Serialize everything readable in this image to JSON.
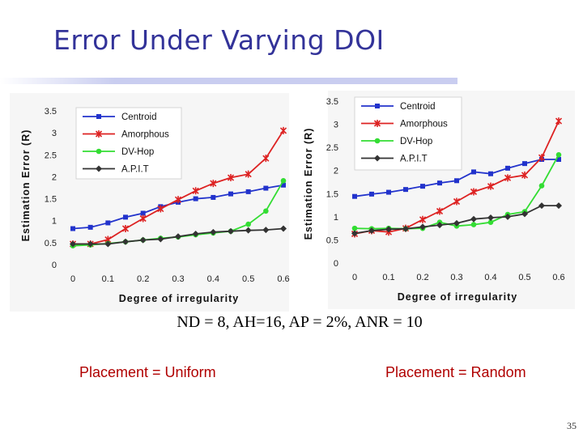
{
  "slide": {
    "title": "Error Under Varying DOI",
    "params": "ND = 8, AH=16, AP = 2%, ANR = 10",
    "caption_left": "Placement = Uniform",
    "caption_right": "Placement = Random",
    "page_number": "35"
  },
  "series_style": [
    {
      "color": "#2233cc",
      "marker": "square"
    },
    {
      "color": "#dd2222",
      "marker": "star"
    },
    {
      "color": "#33dd33",
      "marker": "circle"
    },
    {
      "color": "#333333",
      "marker": "diamond"
    }
  ],
  "chart_data": [
    {
      "type": "line",
      "xlabel": "Degree of irregularity",
      "ylabel": "Estimation Error (R)",
      "xticks": [
        "0",
        "0.1",
        "0.2",
        "0.3",
        "0.4",
        "0.5",
        "0.6"
      ],
      "yticks": [
        "0",
        "0.5",
        "1",
        "1.5",
        "2",
        "2.5",
        "3",
        "3.5"
      ],
      "xlim": [
        0,
        0.6
      ],
      "ylim": [
        0,
        3.5
      ],
      "grid": false,
      "legend": "top-left",
      "x": [
        0,
        0.05,
        0.1,
        0.15,
        0.2,
        0.25,
        0.3,
        0.35,
        0.4,
        0.45,
        0.5,
        0.55,
        0.6
      ],
      "series": [
        {
          "name": "Centroid",
          "values": [
            0.82,
            0.85,
            0.95,
            1.08,
            1.17,
            1.32,
            1.42,
            1.5,
            1.53,
            1.61,
            1.66,
            1.74,
            1.81
          ]
        },
        {
          "name": "Amorphous",
          "values": [
            0.47,
            0.47,
            0.57,
            0.82,
            1.05,
            1.27,
            1.48,
            1.68,
            1.85,
            1.98,
            2.06,
            2.42,
            3.05
          ]
        },
        {
          "name": "DV-Hop",
          "values": [
            0.43,
            0.45,
            0.48,
            0.52,
            0.56,
            0.6,
            0.63,
            0.68,
            0.72,
            0.76,
            0.92,
            1.22,
            1.91
          ]
        },
        {
          "name": "A.P.I.T",
          "values": [
            0.47,
            0.47,
            0.47,
            0.52,
            0.56,
            0.58,
            0.64,
            0.7,
            0.74,
            0.76,
            0.78,
            0.79,
            0.82
          ]
        }
      ]
    },
    {
      "type": "line",
      "xlabel": "Degree of irregularity",
      "ylabel": "Estimation Error (R)",
      "xticks": [
        "0",
        "0.1",
        "0.2",
        "0.3",
        "0.4",
        "0.5",
        "0.6"
      ],
      "yticks": [
        "0",
        "0.5",
        "1",
        "1.5",
        "2",
        "2.5",
        "3",
        "3.5"
      ],
      "xlim": [
        0,
        0.6
      ],
      "ylim": [
        0,
        3.5
      ],
      "grid": false,
      "legend": "top-left",
      "x": [
        0,
        0.05,
        0.1,
        0.15,
        0.2,
        0.25,
        0.3,
        0.35,
        0.4,
        0.45,
        0.5,
        0.55,
        0.6
      ],
      "series": [
        {
          "name": "Centroid",
          "values": [
            1.44,
            1.49,
            1.53,
            1.59,
            1.66,
            1.73,
            1.78,
            1.97,
            1.93,
            2.05,
            2.15,
            2.24,
            2.24
          ]
        },
        {
          "name": "Amorphous",
          "values": [
            0.63,
            0.7,
            0.67,
            0.75,
            0.94,
            1.12,
            1.33,
            1.54,
            1.66,
            1.84,
            1.9,
            2.28,
            3.07
          ]
        },
        {
          "name": "DV-Hop",
          "values": [
            0.75,
            0.74,
            0.75,
            0.74,
            0.75,
            0.88,
            0.8,
            0.83,
            0.88,
            1.05,
            1.11,
            1.67,
            2.34
          ]
        },
        {
          "name": "A.P.I.T",
          "values": [
            0.64,
            0.7,
            0.73,
            0.74,
            0.78,
            0.82,
            0.86,
            0.95,
            0.98,
            1.0,
            1.06,
            1.24,
            1.24
          ]
        }
      ]
    }
  ]
}
